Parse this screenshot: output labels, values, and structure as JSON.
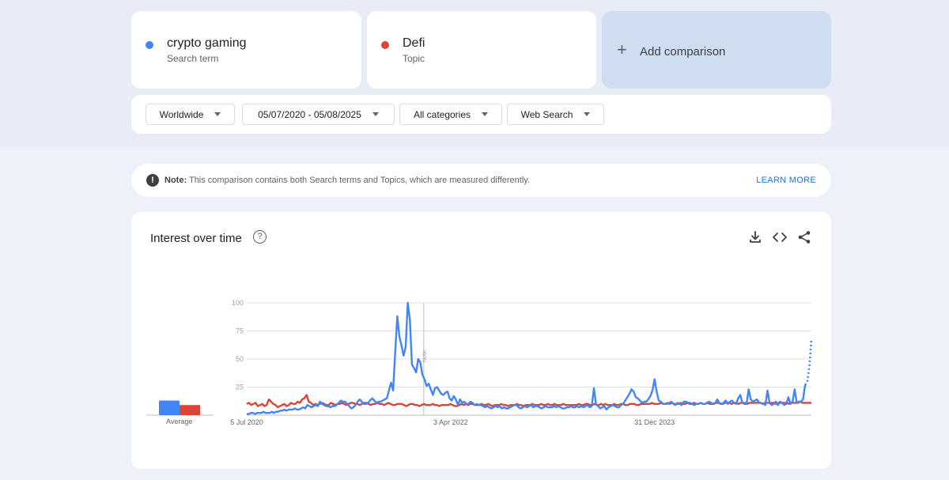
{
  "terms": [
    {
      "name": "crypto gaming",
      "type": "Search term",
      "color": "#4285f4"
    },
    {
      "name": "Defi",
      "type": "Topic",
      "color": "#db4437"
    }
  ],
  "add_comparison": {
    "icon": "plus-icon",
    "label": "Add comparison"
  },
  "filters": {
    "region": "Worldwide",
    "date_range": "05/07/2020 - 05/08/2025",
    "category": "All categories",
    "property": "Web Search"
  },
  "note": {
    "prefix": "Note:",
    "text": "This comparison contains both Search terms and Topics, which are measured differently.",
    "link": "LEARN MORE"
  },
  "panel": {
    "title": "Interest over time",
    "icons": [
      "help-icon",
      "download-icon",
      "embed-code-icon",
      "share-icon"
    ],
    "average_label": "Average",
    "note_marker": "Note"
  },
  "chart_data": {
    "type": "line",
    "title": "Interest over time",
    "ylim": [
      0,
      100
    ],
    "yticks": [
      100,
      75,
      50,
      25
    ],
    "x_tick_labels": [
      "5 Jul 2020",
      "3 Apr 2022",
      "31 Dec 2023"
    ],
    "x_range": [
      "2020-07-05",
      "2025-05-04"
    ],
    "grid": true,
    "legend": "top",
    "averages": [
      {
        "name": "crypto gaming",
        "value": 13
      },
      {
        "name": "Defi",
        "value": 9
      }
    ],
    "series": [
      {
        "name": "crypto gaming",
        "color": "#4285f4",
        "partial_last_points": 3,
        "values": [
          1,
          1,
          2,
          2,
          1,
          2,
          2,
          2,
          3,
          2,
          2,
          2,
          3,
          2,
          3,
          3,
          4,
          4,
          5,
          4,
          5,
          5,
          5,
          6,
          5,
          5,
          6,
          7,
          6,
          9,
          8,
          7,
          8,
          9,
          8,
          12,
          10,
          9,
          8,
          8,
          7,
          8,
          8,
          9,
          11,
          13,
          12,
          12,
          10,
          8,
          6,
          7,
          9,
          12,
          14,
          12,
          10,
          10,
          11,
          13,
          15,
          13,
          11,
          12,
          12,
          13,
          14,
          15,
          22,
          29,
          22,
          57,
          88,
          70,
          62,
          53,
          61,
          100,
          85,
          45,
          42,
          38,
          50,
          47,
          36,
          32,
          26,
          28,
          23,
          18,
          24,
          25,
          22,
          19,
          18,
          20,
          21,
          15,
          13,
          17,
          14,
          9,
          14,
          11,
          12,
          10,
          10,
          12,
          11,
          9,
          10,
          9,
          9,
          8,
          7,
          8,
          7,
          6,
          7,
          8,
          7,
          8,
          6,
          7,
          6,
          6,
          7,
          8,
          9,
          9,
          7,
          6,
          7,
          8,
          7,
          8,
          9,
          7,
          8,
          8,
          7,
          6,
          7,
          8,
          7,
          7,
          7,
          8,
          7,
          8,
          7,
          6,
          6,
          7,
          7,
          8,
          7,
          7,
          8,
          7,
          8,
          7,
          8,
          9,
          7,
          8,
          24,
          10,
          8,
          6,
          7,
          8,
          5,
          7,
          8,
          9,
          8,
          7,
          7,
          9,
          10,
          13,
          16,
          19,
          23,
          21,
          16,
          15,
          13,
          11,
          12,
          12,
          14,
          17,
          22,
          32,
          21,
          13,
          12,
          10,
          10,
          10,
          11,
          12,
          10,
          9,
          11,
          10,
          9,
          12,
          12,
          11,
          11,
          10,
          9,
          10,
          10,
          11,
          10,
          10,
          11,
          12,
          11,
          10,
          11,
          14,
          11,
          10,
          11,
          13,
          10,
          12,
          13,
          11,
          10,
          15,
          18,
          11,
          10,
          10,
          23,
          14,
          12,
          13,
          14,
          11,
          11,
          10,
          9,
          22,
          11,
          9,
          10,
          12,
          9,
          12,
          11,
          9,
          10,
          16,
          10,
          12,
          23,
          11,
          12,
          12,
          14,
          27,
          29,
          43,
          68
        ]
      },
      {
        "name": "Defi",
        "color": "#db4437",
        "values": [
          10,
          11,
          9,
          10,
          11,
          8,
          9,
          10,
          8,
          9,
          14,
          12,
          10,
          9,
          7,
          8,
          9,
          10,
          8,
          9,
          11,
          10,
          10,
          12,
          11,
          14,
          15,
          18,
          12,
          11,
          9,
          10,
          9,
          10,
          11,
          10,
          9,
          9,
          11,
          10,
          9,
          10,
          10,
          11,
          10,
          9,
          10,
          11,
          11,
          10,
          10,
          9,
          10,
          11,
          11,
          10,
          9,
          10,
          10,
          11,
          10,
          10,
          9,
          10,
          11,
          10,
          9,
          9,
          10,
          10,
          10,
          9,
          8,
          9,
          10,
          10,
          9,
          9,
          8,
          9,
          10,
          9,
          9,
          9,
          10,
          9,
          9,
          8,
          9,
          9,
          9,
          9,
          10,
          9,
          8,
          8,
          9,
          10,
          9,
          10,
          9,
          10,
          10,
          9,
          9,
          9,
          10,
          9,
          9,
          10,
          9,
          8,
          9,
          9,
          9,
          10,
          9,
          9,
          8,
          9,
          9,
          9,
          10,
          9,
          9,
          8,
          9,
          9,
          9,
          10,
          9,
          9,
          9,
          10,
          9,
          9,
          10,
          9,
          9,
          10,
          9,
          9,
          9,
          10,
          9,
          9,
          9,
          9,
          9,
          9,
          10,
          9,
          9,
          10,
          10,
          9,
          9,
          10,
          9,
          9,
          10,
          9,
          10,
          9,
          9,
          9,
          10,
          9,
          9,
          10,
          10,
          9,
          9,
          10,
          10,
          10,
          9,
          9,
          10,
          10,
          10,
          10,
          10,
          11,
          10,
          10,
          10,
          11,
          10,
          10,
          11,
          10,
          11,
          10,
          10,
          10,
          11,
          10,
          10,
          11,
          10,
          10,
          11,
          10,
          10,
          11,
          10,
          10,
          11,
          10,
          10,
          10,
          11,
          11,
          10,
          10,
          11,
          11,
          11,
          10,
          11,
          11,
          10,
          11,
          11,
          11,
          10,
          11,
          11,
          11,
          11,
          11,
          11,
          10,
          11,
          11,
          11,
          11,
          11,
          10,
          11,
          11,
          11,
          11,
          11,
          10,
          11,
          11,
          11,
          11,
          12,
          11,
          11,
          11,
          11,
          11
        ]
      }
    ]
  }
}
